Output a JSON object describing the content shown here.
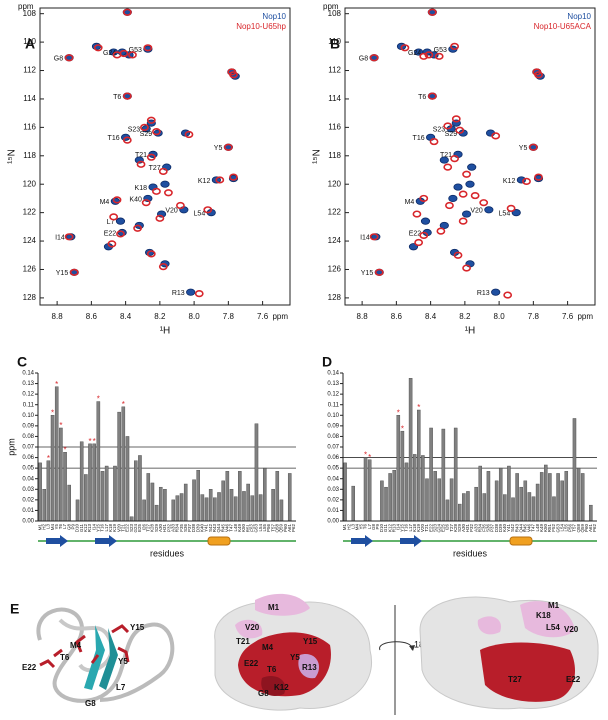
{
  "chart_data": [
    {
      "type": "spectrum",
      "panel": "A",
      "xlim": [
        8.9,
        7.44
      ],
      "ylim": [
        107.6,
        128.5
      ],
      "xticks": [
        8.8,
        8.6,
        8.4,
        8.2,
        {
          "value": 8,
          "label": "8.0"
        },
        7.8,
        7.6
      ],
      "yticks": [
        108,
        110,
        112,
        114,
        116,
        118,
        120,
        122,
        124,
        126,
        128
      ],
      "x_unit": "ppm",
      "y_unit": "ppm",
      "x_label": "¹H",
      "y_label": "¹⁵N",
      "series": [
        {
          "name": "Nop10",
          "color": "#1f4fa0",
          "x": [
            8.39,
            8.73,
            8.57,
            8.47,
            8.42,
            8.38,
            8.27,
            7.78,
            7.76,
            8.39,
            8.4,
            8.25,
            8.28,
            8.21,
            8.05,
            7.8,
            8.24,
            8.16,
            7.87,
            7.77,
            8.24,
            8.27,
            8.46,
            8.06,
            7.9,
            8.43,
            8.32,
            8.42,
            8.72,
            8.5,
            8.26,
            8.7,
            8.17,
            8.02,
            8.32,
            8.17,
            8.19
          ],
          "y": [
            107.9,
            111.1,
            110.3,
            110.7,
            110.7,
            110.9,
            110.5,
            112.1,
            112.4,
            113.8,
            116.7,
            115.7,
            116.1,
            116.4,
            116.4,
            117.4,
            117.9,
            118.8,
            119.7,
            119.6,
            120.2,
            121.0,
            121.2,
            121.8,
            122.0,
            122.6,
            122.9,
            123.4,
            123.7,
            124.4,
            124.8,
            126.2,
            125.6,
            127.6,
            118.3,
            120.0,
            122.1
          ],
          "labels": [
            null,
            "G8",
            null,
            null,
            "G24",
            null,
            "G53",
            null,
            null,
            "T6",
            "T16",
            null,
            "S23",
            "S29",
            null,
            "Y5",
            "T21",
            "T27",
            "K12",
            null,
            "K18",
            "K40",
            "M4",
            "V20",
            "L54",
            "L7",
            null,
            "E22",
            "I14",
            null,
            null,
            "Y15",
            null,
            "R13",
            null,
            null,
            null
          ]
        },
        {
          "name": "Nop10-U65hp",
          "color": "#d8262b",
          "x": [
            8.39,
            8.73,
            8.56,
            8.45,
            8.41,
            8.36,
            8.27,
            7.78,
            7.77,
            8.39,
            8.39,
            8.25,
            8.29,
            8.22,
            8.03,
            7.8,
            8.25,
            8.18,
            7.85,
            7.77,
            8.22,
            8.28,
            8.45,
            8.08,
            7.92,
            8.47,
            8.33,
            8.43,
            8.73,
            8.48,
            8.25,
            8.7,
            8.18,
            7.97,
            8.31,
            8.15,
            8.2
          ],
          "y": [
            107.9,
            111.1,
            110.4,
            110.9,
            110.8,
            110.9,
            110.4,
            112.1,
            112.3,
            113.8,
            116.9,
            115.5,
            116.0,
            116.3,
            116.5,
            117.4,
            118.1,
            119.1,
            119.7,
            119.5,
            120.5,
            121.3,
            121.1,
            121.5,
            121.8,
            122.3,
            123.1,
            123.5,
            123.7,
            124.2,
            124.9,
            126.2,
            125.8,
            127.7,
            118.6,
            120.6,
            122.4
          ]
        }
      ]
    },
    {
      "type": "spectrum",
      "panel": "B",
      "xlim": [
        8.9,
        7.44
      ],
      "ylim": [
        107.6,
        128.5
      ],
      "xticks": [
        8.8,
        8.6,
        8.4,
        8.2,
        {
          "value": 8,
          "label": "8.0"
        },
        7.8,
        7.6
      ],
      "yticks": [
        108,
        110,
        112,
        114,
        116,
        118,
        120,
        122,
        124,
        126,
        128
      ],
      "x_unit": "ppm",
      "y_unit": "ppm",
      "x_label": "¹H",
      "y_label": "¹⁵N",
      "series": [
        {
          "name": "Nop10",
          "color": "#1f4fa0",
          "x": [
            8.39,
            8.73,
            8.57,
            8.47,
            8.42,
            8.38,
            8.27,
            7.78,
            7.76,
            8.39,
            8.4,
            8.25,
            8.28,
            8.21,
            8.05,
            7.8,
            8.24,
            8.16,
            7.87,
            7.77,
            8.24,
            8.27,
            8.46,
            8.06,
            7.9,
            8.43,
            8.32,
            8.42,
            8.72,
            8.5,
            8.26,
            8.7,
            8.17,
            8.02,
            8.32,
            8.17,
            8.19
          ],
          "y": [
            107.9,
            111.1,
            110.3,
            110.7,
            110.7,
            110.9,
            110.5,
            112.1,
            112.4,
            113.8,
            116.7,
            115.7,
            116.1,
            116.4,
            116.4,
            117.4,
            117.9,
            118.8,
            119.7,
            119.6,
            120.2,
            121.0,
            121.2,
            121.8,
            122.0,
            122.6,
            122.9,
            123.4,
            123.7,
            124.4,
            124.8,
            126.2,
            125.6,
            127.6,
            118.3,
            120.0,
            122.1
          ],
          "labels": [
            null,
            "G8",
            null,
            null,
            "G24",
            null,
            "G53",
            null,
            null,
            "T6",
            "T16",
            null,
            "S23",
            "S29",
            null,
            "Y5",
            "T21",
            null,
            "K12",
            null,
            null,
            null,
            "M4",
            "V20",
            "L54",
            null,
            null,
            "E22",
            "I14",
            null,
            null,
            "Y15",
            null,
            "R13",
            null,
            null,
            null
          ]
        },
        {
          "name": "Nop10-U65ACA",
          "color": "#d8262b",
          "x": [
            8.39,
            8.73,
            8.55,
            8.44,
            8.41,
            8.35,
            8.26,
            7.78,
            7.77,
            8.39,
            8.38,
            8.25,
            8.3,
            8.23,
            8.02,
            7.8,
            8.26,
            8.19,
            7.84,
            7.77,
            8.21,
            8.29,
            8.44,
            8.09,
            7.93,
            8.48,
            8.34,
            8.44,
            8.73,
            8.47,
            8.24,
            8.7,
            8.19,
            7.95,
            8.3,
            8.14,
            8.21
          ],
          "y": [
            107.9,
            111.1,
            110.4,
            111.0,
            110.9,
            111.0,
            110.3,
            112.1,
            112.3,
            113.8,
            117.0,
            115.4,
            115.9,
            116.2,
            116.6,
            117.4,
            118.2,
            119.3,
            119.8,
            119.5,
            120.7,
            121.5,
            121.0,
            121.3,
            121.7,
            122.1,
            123.3,
            123.6,
            123.7,
            124.1,
            125.0,
            126.2,
            125.9,
            127.8,
            118.8,
            120.8,
            122.6
          ]
        }
      ]
    },
    {
      "type": "bar",
      "panel": "C",
      "color": "#808080",
      "ylim": [
        0,
        0.14
      ],
      "yticks": [
        {
          "value": 0,
          "label": "0.00"
        },
        {
          "value": 0.01,
          "label": "0.01"
        },
        {
          "value": 0.02,
          "label": "0.02"
        },
        {
          "value": 0.03,
          "label": "0.03"
        },
        {
          "value": 0.04,
          "label": "0.04"
        },
        {
          "value": 0.05,
          "label": "0.05"
        },
        {
          "value": 0.06,
          "label": "0.06"
        },
        {
          "value": 0.07,
          "label": "0.07"
        },
        {
          "value": 0.08,
          "label": "0.08"
        },
        {
          "value": 0.09,
          "label": "0.09"
        },
        {
          "value": 0.1,
          "label": "0.10"
        },
        {
          "value": 0.11,
          "label": "0.11"
        },
        {
          "value": 0.12,
          "label": "0.12"
        },
        {
          "value": 0.13,
          "label": "0.13"
        },
        {
          "value": 0.14,
          "label": "0.14"
        }
      ],
      "y_label": "ppm",
      "x_label": "residues",
      "ref_lines": [
        0.05,
        0.07
      ],
      "asterisk": "*",
      "categories": [
        "M1",
        "H2",
        "L3",
        "M4",
        "Y5",
        "T6",
        "L7",
        "G8",
        "P9",
        "D10",
        "G11",
        "K12",
        "R13",
        "I14",
        "Y15",
        "T16",
        "L17",
        "K18",
        "K19",
        "V20",
        "T21",
        "E22",
        "S23",
        "G24",
        "E25",
        "I26",
        "T27",
        "K28",
        "S29",
        "A30",
        "H31",
        "P32",
        "A33",
        "R34",
        "F35",
        "S36",
        "P37",
        "D38",
        "D39",
        "K40",
        "Y41",
        "S42",
        "R43",
        "Q44",
        "R45",
        "V46",
        "T47",
        "L48",
        "K49",
        "K50",
        "R51",
        "F52",
        "G53",
        "L54",
        "L55",
        "P56",
        "T57",
        "Q58",
        "Q59",
        "P60",
        "A61",
        "P62"
      ],
      "values": [
        0.055,
        0.03,
        0.057,
        0.1,
        0.127,
        0.088,
        0.065,
        0.034,
        null,
        0.02,
        0.075,
        0.044,
        0.073,
        0.073,
        0.113,
        0.047,
        0.052,
        null,
        0.052,
        0.103,
        0.108,
        0.08,
        0.004,
        0.057,
        0.062,
        0.02,
        0.045,
        0.036,
        0.015,
        0.032,
        0.03,
        null,
        0.02,
        0.024,
        0.026,
        0.035,
        null,
        0.039,
        0.048,
        0.025,
        0.022,
        0.03,
        0.022,
        0.027,
        0.038,
        0.047,
        0.03,
        0.023,
        0.047,
        0.028,
        0.035,
        0.024,
        0.092,
        0.025,
        0.05,
        null,
        0.03,
        0.047,
        0.02,
        null,
        0.045,
        null
      ],
      "asterisk_on": [
        false,
        false,
        true,
        true,
        true,
        true,
        true,
        false,
        false,
        false,
        false,
        false,
        true,
        true,
        true,
        false,
        false,
        false,
        false,
        false,
        true,
        false,
        false,
        false,
        false,
        false,
        false,
        false,
        false,
        false,
        false,
        false,
        false,
        false,
        false,
        false,
        false,
        false,
        false,
        false,
        false,
        false,
        false,
        false,
        false,
        false,
        false,
        false,
        false,
        false,
        false,
        false,
        false,
        false,
        false,
        false,
        false,
        false,
        false,
        false,
        false,
        false
      ]
    },
    {
      "type": "bar",
      "panel": "D",
      "color": "#808080",
      "ylim": [
        0,
        0.14
      ],
      "yticks": [
        {
          "value": 0,
          "label": "0.00"
        },
        {
          "value": 0.01,
          "label": "0.01"
        },
        {
          "value": 0.02,
          "label": "0.02"
        },
        {
          "value": 0.03,
          "label": "0.03"
        },
        {
          "value": 0.04,
          "label": "0.04"
        },
        {
          "value": 0.05,
          "label": "0.05"
        },
        {
          "value": 0.06,
          "label": "0.06"
        },
        {
          "value": 0.07,
          "label": "0.07"
        },
        {
          "value": 0.08,
          "label": "0.08"
        },
        {
          "value": 0.09,
          "label": "0.09"
        },
        {
          "value": 0.1,
          "label": "0.10"
        },
        {
          "value": 0.11,
          "label": "0.11"
        },
        {
          "value": 0.12,
          "label": "0.12"
        },
        {
          "value": 0.13,
          "label": "0.13"
        },
        {
          "value": 0.14,
          "label": "0.14"
        }
      ],
      "x_label": "residues",
      "ref_lines": [
        0.05,
        0.06
      ],
      "asterisk": "*",
      "categories": [
        "M1",
        "H2",
        "L3",
        "M4",
        "Y5",
        "T6",
        "L7",
        "G8",
        "P9",
        "D10",
        "G11",
        "K12",
        "R13",
        "I14",
        "Y15",
        "T16",
        "L17",
        "K18",
        "K19",
        "V20",
        "T21",
        "E22",
        "S23",
        "G24",
        "E25",
        "I26",
        "T27",
        "K28",
        "S29",
        "A30",
        "H31",
        "P32",
        "A33",
        "R34",
        "F35",
        "S36",
        "P37",
        "D38",
        "D39",
        "K40",
        "Y41",
        "S42",
        "R43",
        "Q44",
        "R45",
        "V46",
        "T47",
        "L48",
        "K49",
        "K50",
        "R51",
        "F52",
        "G53",
        "L54",
        "L55",
        "P56",
        "T57",
        "Q58",
        "Q59",
        "P60",
        "A61",
        "P62"
      ],
      "values": [
        0.055,
        null,
        0.033,
        null,
        null,
        0.06,
        0.058,
        null,
        null,
        0.038,
        0.032,
        0.045,
        0.048,
        0.1,
        0.085,
        0.055,
        0.135,
        0.063,
        0.105,
        0.062,
        0.04,
        0.088,
        0.047,
        0.04,
        0.087,
        0.02,
        0.04,
        0.088,
        0.016,
        0.026,
        0.028,
        null,
        0.032,
        0.052,
        0.026,
        0.047,
        null,
        0.038,
        0.05,
        0.025,
        0.052,
        0.022,
        0.045,
        0.032,
        0.038,
        0.027,
        0.023,
        0.035,
        0.046,
        0.053,
        0.045,
        0.023,
        0.045,
        0.038,
        0.047,
        null,
        0.097,
        0.05,
        0.045,
        null,
        0.015,
        null
      ],
      "asterisk_on": [
        false,
        false,
        false,
        false,
        false,
        true,
        true,
        false,
        false,
        false,
        false,
        false,
        false,
        true,
        true,
        false,
        false,
        false,
        true,
        false,
        false,
        false,
        false,
        false,
        false,
        false,
        false,
        false,
        false,
        false,
        false,
        false,
        false,
        false,
        false,
        false,
        false,
        false,
        false,
        false,
        false,
        false,
        false,
        false,
        false,
        false,
        false,
        false,
        false,
        false,
        false,
        false,
        false,
        false,
        false,
        false,
        false,
        false,
        false,
        false,
        false,
        false
      ]
    }
  ],
  "panel_e": {
    "label": "E",
    "ribbon_labels": [
      "M4",
      "Y15",
      "E22",
      "T6",
      "Y5",
      "L7",
      "G8"
    ],
    "front_labels": [
      "M1",
      "V20",
      "T21",
      "M4",
      "Y5",
      "Y15",
      "E22",
      "T6",
      "R13",
      "G8",
      "K12"
    ],
    "rotation": "180°",
    "back_labels": [
      "K18",
      "M1",
      "L54",
      "V20",
      "T27",
      "E22"
    ]
  }
}
